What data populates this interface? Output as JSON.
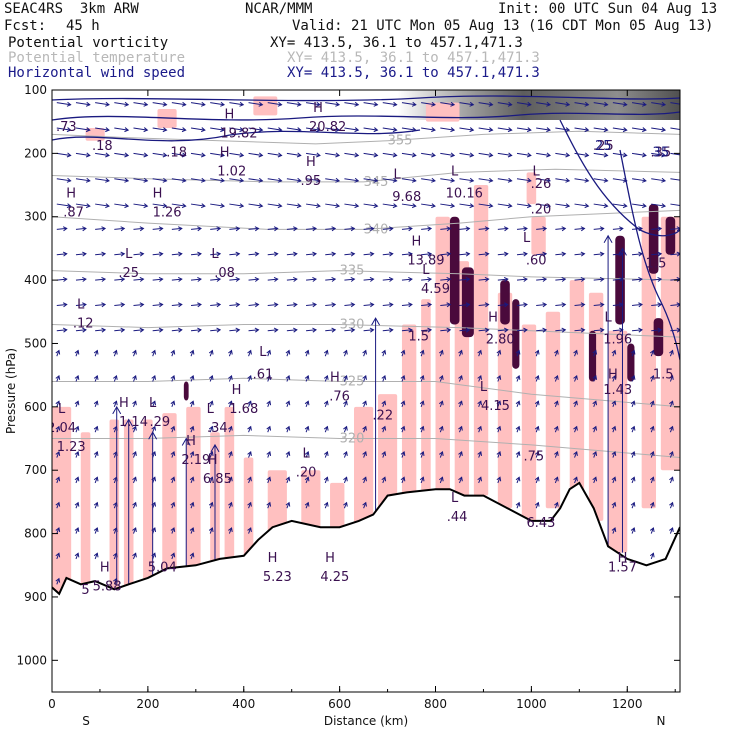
{
  "header": {
    "project": "SEAC4RS  3km ARW",
    "org": "NCAR/MMM",
    "init": "Init: 00 UTC Sun 04 Aug 13",
    "fcst_label": "Fcst:",
    "fcst_value": "45 h",
    "valid": "Valid: 21 UTC Mon 05 Aug 13 (16 CDT Mon 05 Aug 13)",
    "fields": [
      {
        "name": "Potential vorticity",
        "xy": "XY= 413.5, 36.1 to 457.1,471.3",
        "color": "#111111"
      },
      {
        "name": "Potential temperature",
        "xy": "XY= 413.5, 36.1 to 457.1,471.3",
        "color": "#b8b8b8"
      },
      {
        "name": "Horizontal wind speed",
        "xy": "XY= 413.5, 36.1 to 457.1,471.3",
        "color": "#1b1b8a"
      }
    ]
  },
  "colors": {
    "pv_fill": "#ffc0c0",
    "pv_strong": "#4a0a3c",
    "theta": "#b0b0b0",
    "wind": "#1a1a80",
    "terrain": "#000000",
    "label": "#3a1050"
  },
  "chart_data": {
    "type": "cross-section",
    "xlabel": "Distance (km)",
    "ylabel": "Pressure (hPa)",
    "xlim": [
      0,
      1310
    ],
    "ylim": [
      1050,
      100
    ],
    "x_ticks": [
      0,
      200,
      400,
      600,
      800,
      1000,
      1200
    ],
    "y_ticks": [
      100,
      200,
      300,
      400,
      500,
      600,
      700,
      800,
      900,
      1000
    ],
    "x_end_labels": {
      "left": "S",
      "right": "N"
    },
    "terrain": [
      [
        0,
        885
      ],
      [
        15,
        895
      ],
      [
        30,
        870
      ],
      [
        60,
        880
      ],
      [
        90,
        875
      ],
      [
        130,
        888
      ],
      [
        160,
        880
      ],
      [
        200,
        870
      ],
      [
        240,
        855
      ],
      [
        300,
        850
      ],
      [
        350,
        840
      ],
      [
        400,
        835
      ],
      [
        430,
        810
      ],
      [
        460,
        790
      ],
      [
        500,
        780
      ],
      [
        560,
        790
      ],
      [
        600,
        790
      ],
      [
        640,
        780
      ],
      [
        670,
        770
      ],
      [
        700,
        740
      ],
      [
        740,
        735
      ],
      [
        800,
        730
      ],
      [
        830,
        730
      ],
      [
        860,
        740
      ],
      [
        900,
        740
      ],
      [
        950,
        760
      ],
      [
        1000,
        780
      ],
      [
        1040,
        780
      ],
      [
        1060,
        760
      ],
      [
        1080,
        730
      ],
      [
        1100,
        720
      ],
      [
        1130,
        760
      ],
      [
        1160,
        820
      ],
      [
        1200,
        840
      ],
      [
        1240,
        850
      ],
      [
        1280,
        840
      ],
      [
        1310,
        790
      ]
    ],
    "theta_contours": [
      {
        "label": "355",
        "points": [
          [
            0,
            170
          ],
          [
            150,
            175
          ],
          [
            350,
            180
          ],
          [
            550,
            185
          ],
          [
            700,
            180
          ],
          [
            900,
            170
          ],
          [
            1100,
            165
          ],
          [
            1310,
            170
          ]
        ]
      },
      {
        "label": "345",
        "points": [
          [
            0,
            235
          ],
          [
            200,
            240
          ],
          [
            450,
            245
          ],
          [
            650,
            245
          ],
          [
            850,
            230
          ],
          [
            1050,
            225
          ],
          [
            1310,
            230
          ]
        ]
      },
      {
        "label": "340",
        "points": [
          [
            0,
            300
          ],
          [
            200,
            310
          ],
          [
            450,
            320
          ],
          [
            650,
            320
          ],
          [
            850,
            310
          ],
          [
            1000,
            300
          ],
          [
            1310,
            290
          ]
        ]
      },
      {
        "label": "335",
        "points": [
          [
            0,
            385
          ],
          [
            200,
            390
          ],
          [
            400,
            390
          ],
          [
            600,
            385
          ],
          [
            850,
            390
          ],
          [
            1000,
            395
          ],
          [
            1310,
            400
          ]
        ]
      },
      {
        "label": "330",
        "points": [
          [
            0,
            470
          ],
          [
            200,
            475
          ],
          [
            400,
            470
          ],
          [
            600,
            470
          ],
          [
            850,
            475
          ],
          [
            1000,
            480
          ],
          [
            1310,
            490
          ]
        ]
      },
      {
        "label": "325",
        "points": [
          [
            0,
            560
          ],
          [
            200,
            560
          ],
          [
            400,
            555
          ],
          [
            600,
            560
          ],
          [
            800,
            560
          ],
          [
            1000,
            580
          ],
          [
            1310,
            600
          ]
        ]
      },
      {
        "label": "320",
        "points": [
          [
            0,
            650
          ],
          [
            200,
            650
          ],
          [
            400,
            645
          ],
          [
            600,
            650
          ],
          [
            800,
            650
          ],
          [
            1000,
            660
          ],
          [
            1310,
            680
          ]
        ]
      }
    ],
    "pv_high_labels": [
      {
        "text": "H",
        "x": 40,
        "y": 270
      },
      {
        "text": ".87",
        "x": 45,
        "y": 300
      },
      {
        "text": "H",
        "x": 220,
        "y": 270
      },
      {
        "text": "1.26",
        "x": 240,
        "y": 300
      },
      {
        "text": "L",
        "x": 160,
        "y": 365
      },
      {
        "text": ".25",
        "x": 160,
        "y": 395
      },
      {
        "text": "L",
        "x": 340,
        "y": 365
      },
      {
        "text": ".08",
        "x": 360,
        "y": 395
      },
      {
        "text": "L",
        "x": 60,
        "y": 445
      },
      {
        "text": ".12",
        "x": 65,
        "y": 475
      },
      {
        "text": "H",
        "x": 370,
        "y": 145
      },
      {
        "text": "19.82",
        "x": 390,
        "y": 175
      },
      {
        "text": "H",
        "x": 360,
        "y": 205
      },
      {
        "text": "1.02",
        "x": 375,
        "y": 235
      },
      {
        "text": "H",
        "x": 555,
        "y": 135
      },
      {
        "text": "20.82",
        "x": 575,
        "y": 165
      },
      {
        "text": "H",
        "x": 540,
        "y": 220
      },
      {
        "text": ".95",
        "x": 540,
        "y": 250
      },
      {
        "text": "L",
        "x": 720,
        "y": 240
      },
      {
        "text": "9.68",
        "x": 740,
        "y": 275
      },
      {
        "text": "L",
        "x": 840,
        "y": 235
      },
      {
        "text": "10.16",
        "x": 860,
        "y": 270
      },
      {
        "text": "H",
        "x": 760,
        "y": 345
      },
      {
        "text": "13.89",
        "x": 780,
        "y": 375
      },
      {
        "text": "L",
        "x": 780,
        "y": 390
      },
      {
        "text": "4.59",
        "x": 800,
        "y": 420
      },
      {
        "text": "L",
        "x": 990,
        "y": 340
      },
      {
        "text": ".60",
        "x": 1010,
        "y": 375
      },
      {
        "text": "L",
        "x": 1010,
        "y": 235
      },
      {
        "text": ".26",
        "x": 1020,
        "y": 255
      },
      {
        "text": "1.5",
        "x": 765,
        "y": 495
      },
      {
        "text": "H",
        "x": 920,
        "y": 465
      },
      {
        "text": "2.80",
        "x": 935,
        "y": 500
      },
      {
        "text": "L",
        "x": 1160,
        "y": 465
      },
      {
        "text": "1.96",
        "x": 1180,
        "y": 500
      },
      {
        "text": "L",
        "x": 440,
        "y": 520
      },
      {
        "text": ".61",
        "x": 440,
        "y": 555
      },
      {
        "text": "H",
        "x": 590,
        "y": 560
      },
      {
        "text": ".76",
        "x": 600,
        "y": 590
      },
      {
        "text": "H",
        "x": 385,
        "y": 580
      },
      {
        "text": "1.68",
        "x": 400,
        "y": 610
      },
      {
        "text": "L",
        "x": 900,
        "y": 575
      },
      {
        "text": "4.15",
        "x": 925,
        "y": 605
      },
      {
        "text": "H",
        "x": 1170,
        "y": 555
      },
      {
        "text": "1.43",
        "x": 1180,
        "y": 580
      },
      {
        "text": "1.5",
        "x": 1275,
        "y": 555
      },
      {
        "text": "1.5",
        "x": 1260,
        "y": 380
      },
      {
        "text": "L",
        "x": 20,
        "y": 610
      },
      {
        "text": "2.04",
        "x": 20,
        "y": 640
      },
      {
        "text": "1.23",
        "x": 40,
        "y": 670
      },
      {
        "text": "H",
        "x": 150,
        "y": 600
      },
      {
        "text": "1.14",
        "x": 170,
        "y": 630
      },
      {
        "text": "L",
        "x": 210,
        "y": 600
      },
      {
        "text": ".29",
        "x": 225,
        "y": 630
      },
      {
        "text": "L",
        "x": 330,
        "y": 610
      },
      {
        "text": ".34",
        "x": 345,
        "y": 640
      },
      {
        "text": "H",
        "x": 290,
        "y": 660
      },
      {
        "text": "2.19",
        "x": 300,
        "y": 690
      },
      {
        "text": "H",
        "x": 335,
        "y": 690
      },
      {
        "text": "6.85",
        "x": 345,
        "y": 720
      },
      {
        "text": "L",
        "x": 530,
        "y": 680
      },
      {
        "text": ".20",
        "x": 530,
        "y": 710
      },
      {
        "text": "L",
        "x": 840,
        "y": 750
      },
      {
        "text": ".44",
        "x": 845,
        "y": 780
      },
      {
        "text": "6.43",
        "x": 1020,
        "y": 790
      },
      {
        "text": ".75",
        "x": 1005,
        "y": 685
      },
      {
        "text": "H",
        "x": 460,
        "y": 845
      },
      {
        "text": "5.23",
        "x": 470,
        "y": 875
      },
      {
        "text": "H",
        "x": 580,
        "y": 845
      },
      {
        "text": "4.25",
        "x": 590,
        "y": 875
      },
      {
        "text": "H",
        "x": 110,
        "y": 860
      },
      {
        "text": "5.88",
        "x": 115,
        "y": 890
      },
      {
        "text": "5",
        "x": 70,
        "y": 895
      },
      {
        "text": "5.04",
        "x": 230,
        "y": 860
      },
      {
        "text": "1.57",
        "x": 1190,
        "y": 860
      },
      {
        "text": "H",
        "x": 1190,
        "y": 845
      },
      {
        "text": ".18",
        "x": 105,
        "y": 195
      },
      {
        "text": ".73",
        "x": 30,
        "y": 165
      },
      {
        "text": ".18",
        "x": 260,
        "y": 205
      },
      {
        "text": ".35",
        "x": 1270,
        "y": 205
      },
      {
        "text": ".25",
        "x": 1150,
        "y": 195
      },
      {
        "text": ".20",
        "x": 1020,
        "y": 295
      },
      {
        "text": ".22",
        "x": 690,
        "y": 620
      }
    ],
    "wind_speed_labels": [
      {
        "text": "25",
        "x": 1150,
        "y": 195
      },
      {
        "text": "35",
        "x": 1270,
        "y": 205
      }
    ]
  },
  "theta_label_texts": [
    "355",
    "345",
    "340",
    "335",
    "330",
    "325",
    "320"
  ]
}
